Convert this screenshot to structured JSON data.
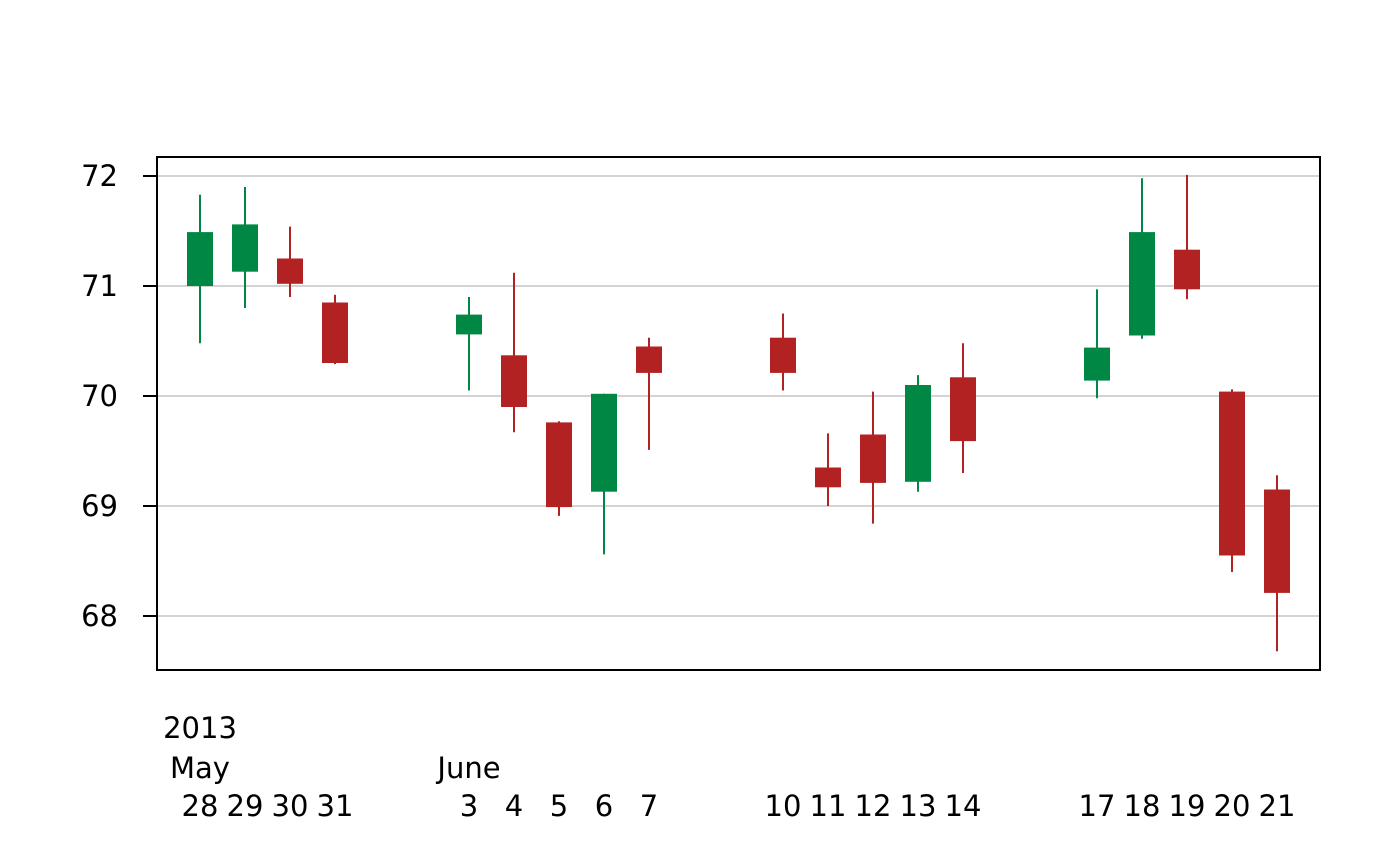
{
  "chart_data": {
    "type": "candlestick",
    "title": "",
    "xlabel": "",
    "ylabel": "",
    "ylim": [
      67.5,
      72.2
    ],
    "y_ticks": [
      "68",
      "69",
      "70",
      "71",
      "72"
    ],
    "grid": true,
    "x_labels": {
      "year": "2013",
      "months": [
        {
          "label": "May",
          "at_index": 0
        },
        {
          "label": "June",
          "at_index": 4
        }
      ]
    },
    "colors": {
      "up": "#008743",
      "down": "#b22222",
      "grid": "#d3d3d3",
      "frame": "#000000"
    },
    "candles": [
      {
        "date": "2013-05-28",
        "label": "28",
        "open": 71.0,
        "high": 71.83,
        "low": 70.48,
        "close": 71.49
      },
      {
        "date": "2013-05-29",
        "label": "29",
        "open": 71.13,
        "high": 71.9,
        "low": 70.8,
        "close": 71.56
      },
      {
        "date": "2013-05-30",
        "label": "30",
        "open": 71.25,
        "high": 71.54,
        "low": 70.9,
        "close": 71.02
      },
      {
        "date": "2013-05-31",
        "label": "31",
        "open": 70.85,
        "high": 70.92,
        "low": 70.29,
        "close": 70.3
      },
      {
        "date": "2013-06-03",
        "label": "3",
        "open": 70.56,
        "high": 70.9,
        "low": 70.05,
        "close": 70.74
      },
      {
        "date": "2013-06-04",
        "label": "4",
        "open": 70.37,
        "high": 71.12,
        "low": 69.67,
        "close": 69.9
      },
      {
        "date": "2013-06-05",
        "label": "5",
        "open": 69.76,
        "high": 69.77,
        "low": 68.91,
        "close": 68.99
      },
      {
        "date": "2013-06-06",
        "label": "6",
        "open": 69.13,
        "high": 70.02,
        "low": 68.56,
        "close": 70.02
      },
      {
        "date": "2013-06-07",
        "label": "7",
        "open": 70.45,
        "high": 70.53,
        "low": 69.51,
        "close": 70.21
      },
      {
        "date": "2013-06-10",
        "label": "10",
        "open": 70.53,
        "high": 70.75,
        "low": 70.05,
        "close": 70.21
      },
      {
        "date": "2013-06-11",
        "label": "11",
        "open": 69.35,
        "high": 69.66,
        "low": 69.0,
        "close": 69.17
      },
      {
        "date": "2013-06-12",
        "label": "12",
        "open": 69.65,
        "high": 70.04,
        "low": 68.84,
        "close": 69.21
      },
      {
        "date": "2013-06-13",
        "label": "13",
        "open": 69.22,
        "high": 70.19,
        "low": 69.13,
        "close": 70.1
      },
      {
        "date": "2013-06-14",
        "label": "14",
        "open": 70.17,
        "high": 70.48,
        "low": 69.3,
        "close": 69.59
      },
      {
        "date": "2013-06-17",
        "label": "17",
        "open": 70.14,
        "high": 70.97,
        "low": 69.98,
        "close": 70.44
      },
      {
        "date": "2013-06-18",
        "label": "18",
        "open": 70.55,
        "high": 71.98,
        "low": 70.52,
        "close": 71.49
      },
      {
        "date": "2013-06-19",
        "label": "19",
        "open": 71.33,
        "high": 72.01,
        "low": 70.88,
        "close": 70.97
      },
      {
        "date": "2013-06-20",
        "label": "20",
        "open": 70.04,
        "high": 70.06,
        "low": 68.4,
        "close": 68.55
      },
      {
        "date": "2013-06-21",
        "label": "21",
        "open": 69.15,
        "high": 69.28,
        "low": 67.68,
        "close": 68.21
      }
    ]
  }
}
